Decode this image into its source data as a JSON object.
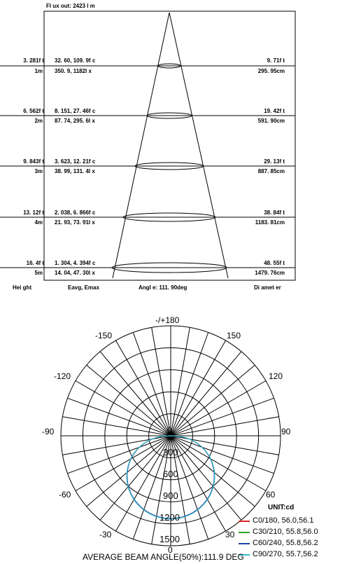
{
  "cone": {
    "flux": "Fl ux  out: 2423  l m",
    "rows": [
      {
        "feet": "3. 281f t",
        "meters": "1m",
        "fc": "32. 60, 109. 9f c",
        "lux": "350. 9, 1182l x",
        "dia_ft": "9. 71f t",
        "dia_cm": "295. 95cm"
      },
      {
        "feet": "6. 562f t",
        "meters": "2m",
        "fc": "8. 151, 27. 46f c",
        "lux": "87. 74, 295. 6l x",
        "dia_ft": "19. 42f t",
        "dia_cm": "591. 90cm"
      },
      {
        "feet": "9. 843f t",
        "meters": "3m",
        "fc": "3. 623, 12. 21f c",
        "lux": "38. 99, 131. 4l x",
        "dia_ft": "29. 13f t",
        "dia_cm": "887. 85cm"
      },
      {
        "feet": "13. 12f t",
        "meters": "4m",
        "fc": "2. 038, 6. 866f c",
        "lux": "21. 93, 73. 91l x",
        "dia_ft": "38. 84f t",
        "dia_cm": "1183. 81cm"
      },
      {
        "feet": "16. 4f t",
        "meters": "5m",
        "fc": "1. 304, 4. 394f c",
        "lux": "14. 04, 47. 30l x",
        "dia_ft": "48. 55f t",
        "dia_cm": "1479. 76cm"
      }
    ],
    "footer": {
      "height": "Hei ght",
      "eavg": "Eavg, Emax",
      "angle": "Angl e: 111. 90deg",
      "diameter": "Di amet er"
    }
  },
  "polar": {
    "angle_labels": {
      "top": "-/+180",
      "m150": "-150",
      "p150": "150",
      "m120": "-120",
      "p120": "120",
      "m90": "-90",
      "p90": "90",
      "m60": "-60",
      "p60": "60",
      "m30": "-30",
      "p30": "30",
      "bottom": "0"
    },
    "radial_labels": [
      "300",
      "600",
      "900",
      "1200",
      "1500"
    ],
    "unit": "UNIT:cd",
    "legend": [
      {
        "label": "C0/180, 56.0,56.1",
        "color": "#e0262b"
      },
      {
        "label": "C30/210, 55.8,56.0",
        "color": "#2aa52a"
      },
      {
        "label": "C60/240, 55.8,56.2",
        "color": "#1f3fa8"
      },
      {
        "label": "C90/270, 55.7,56.2",
        "color": "#35b9c9"
      }
    ],
    "beam_angle": "AVERAGE BEAM ANGLE(50%):111.9 DEG"
  }
}
